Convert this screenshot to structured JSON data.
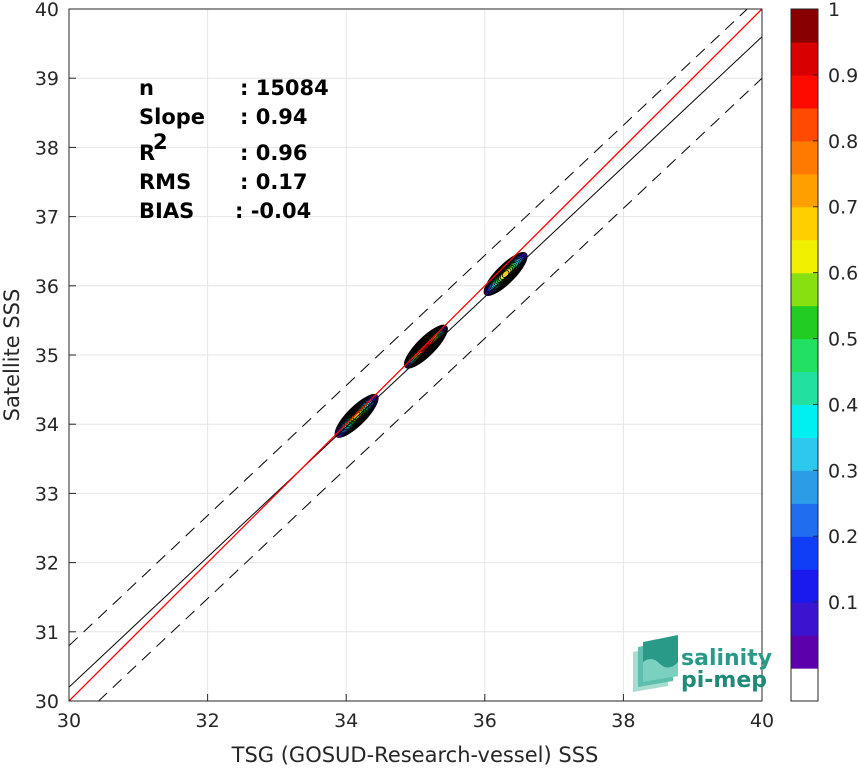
{
  "chart_data": {
    "type": "contour-scatter",
    "xlabel": "TSG (GOSUD-Research-vessel) SSS",
    "ylabel": "Satellite SSS",
    "xlim": [
      30,
      40
    ],
    "ylim": [
      30,
      40
    ],
    "x_ticks": [
      "30",
      "32",
      "34",
      "36",
      "38",
      "40"
    ],
    "y_ticks": [
      "30",
      "31",
      "32",
      "33",
      "34",
      "35",
      "36",
      "37",
      "38",
      "39",
      "40"
    ],
    "grid": true,
    "stats": [
      {
        "label": "n",
        "value": ": 15084"
      },
      {
        "label": "Slope",
        "value": ": 0.94"
      },
      {
        "label": "R",
        "sup": "2",
        "value": ": 0.96"
      },
      {
        "label": "RMS",
        "value": ": 0.17"
      },
      {
        "label": "BIAS",
        "value": ": -0.04"
      }
    ],
    "lines": {
      "identity": {
        "slope": 1,
        "intercept": 0,
        "color": "#ff0000"
      },
      "regression": {
        "slope": 0.94,
        "offset_at_30": 0.2,
        "color": "#000000"
      },
      "bounds": {
        "offset": 0.6,
        "style": "dashed",
        "color": "#000000"
      }
    },
    "density_peaks": [
      {
        "x": 34.15,
        "y": 34.12,
        "peak": 0.65
      },
      {
        "x": 35.15,
        "y": 35.12,
        "peak": 1.0
      },
      {
        "x": 36.3,
        "y": 36.17,
        "peak": 0.68
      }
    ],
    "colorbar": {
      "range": [
        0,
        1
      ],
      "ticks": [
        "0.1",
        "0.2",
        "0.3",
        "0.4",
        "0.5",
        "0.6",
        "0.7",
        "0.8",
        "0.9",
        "1"
      ],
      "colors": [
        "#ffffff",
        "#5b00aa",
        "#3a14cf",
        "#1a1aee",
        "#0f3ef6",
        "#1f6ef0",
        "#2c9ce6",
        "#2ec8ee",
        "#00f0f0",
        "#22e0a0",
        "#22e060",
        "#22cc22",
        "#88e011",
        "#f0f000",
        "#ffd000",
        "#ffa000",
        "#ff7a00",
        "#ff4a00",
        "#ff0a00",
        "#d80000",
        "#880000"
      ]
    },
    "logo": {
      "line1": "salinity",
      "line2": "pi-mep"
    }
  }
}
